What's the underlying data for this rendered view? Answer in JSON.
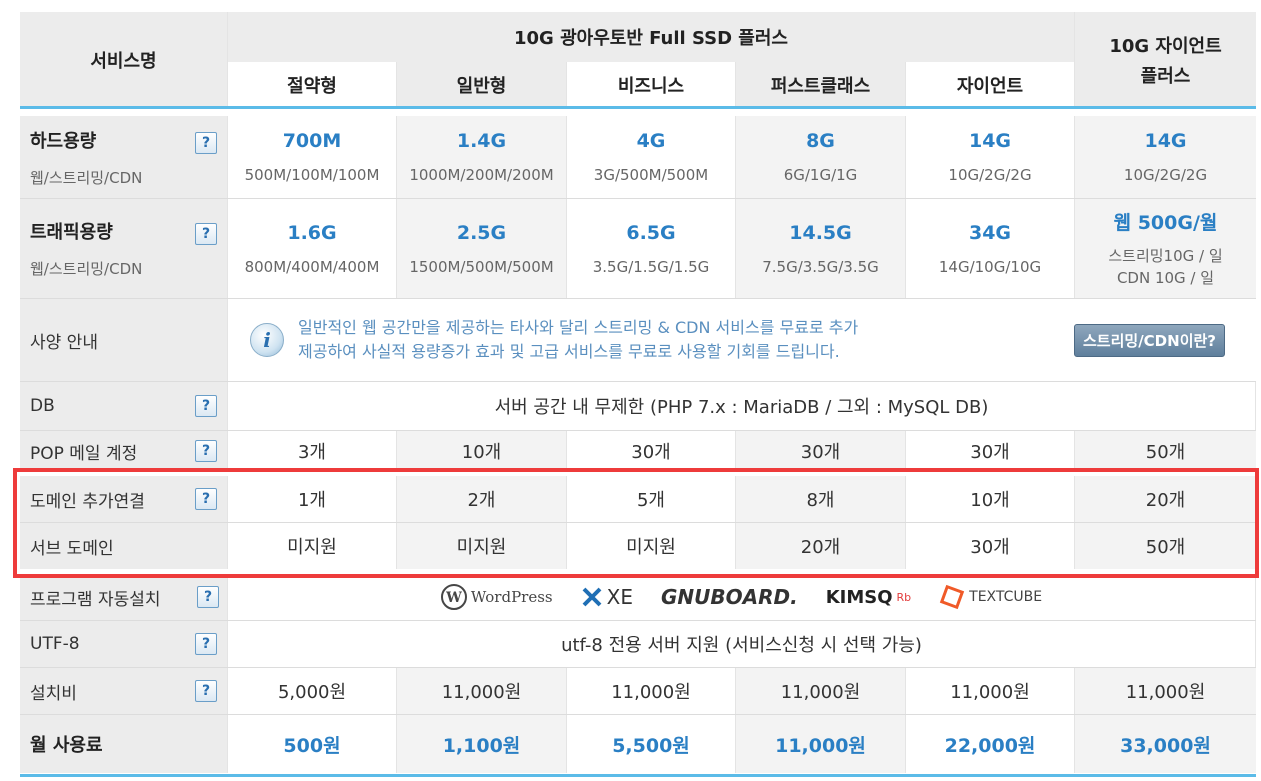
{
  "header": {
    "service_name": "서비스명",
    "group_title": "10G 광아우토반 Full SSD 플러스",
    "plans": [
      "절약형",
      "일반형",
      "비즈니스",
      "퍼스트클래스",
      "자이언트"
    ],
    "giant_plus_line1": "10G 자이언트",
    "giant_plus_line2": "플러스"
  },
  "help_mark": "?",
  "rows": {
    "disk": {
      "label": "하드용량",
      "sublabel": "웹/스트리밍/CDN",
      "values": [
        "700M",
        "1.4G",
        "4G",
        "8G",
        "14G",
        "14G"
      ],
      "subvalues": [
        "500M/100M/100M",
        "1000M/200M/200M",
        "3G/500M/500M",
        "6G/1G/1G",
        "10G/2G/2G",
        "10G/2G/2G"
      ]
    },
    "traffic": {
      "label": "트래픽용량",
      "sublabel": "웹/스트리밍/CDN",
      "values": [
        "1.6G",
        "2.5G",
        "6.5G",
        "14.5G",
        "34G",
        "웹 500G/월"
      ],
      "subvalues": [
        "800M/400M/400M",
        "1500M/500M/500M",
        "3.5G/1.5G/1.5G",
        "7.5G/3.5G/3.5G",
        "14G/10G/10G"
      ],
      "giant_sub_line1": "스트리밍10G / 일",
      "giant_sub_line2": "CDN 10G / 일"
    },
    "spec": {
      "label": "사양 안내",
      "info_line1": "일반적인 웹 공간만을 제공하는 타사와 달리 스트리밍 & CDN 서비스를 무료로 추가",
      "info_line2": "제공하여 사실적 용량증가 효과 및 고급 서비스를 무료로 사용할 기회를 드립니다.",
      "button_label": "스트리밍/CDN이란?"
    },
    "db": {
      "label": "DB",
      "value": "서버 공간 내 무제한 (PHP 7.x : MariaDB / 그외 : MySQL DB)"
    },
    "pop": {
      "label": "POP 메일 계정",
      "values": [
        "3개",
        "10개",
        "30개",
        "30개",
        "30개",
        "50개"
      ]
    },
    "domain_add": {
      "label": "도메인 추가연결",
      "values": [
        "1개",
        "2개",
        "5개",
        "8개",
        "10개",
        "20개"
      ]
    },
    "subdomain": {
      "label": "서브 도메인",
      "values": [
        "미지원",
        "미지원",
        "미지원",
        "20개",
        "30개",
        "50개"
      ]
    },
    "autoinstall": {
      "label": "프로그램 자동설치",
      "logos": [
        {
          "text": "WordPress",
          "icon": "wordpress-logo"
        },
        {
          "text": "XE",
          "icon": "xe-logo"
        },
        {
          "text": "GNUBOARD.",
          "icon": "gnuboard-logo"
        },
        {
          "text": "KIMSQ",
          "sup": "Rb",
          "icon": "kimsq-logo"
        },
        {
          "text": "TEXTCUBE",
          "icon": "textcube-logo"
        }
      ]
    },
    "utf8": {
      "label": "UTF-8",
      "value": "utf-8 전용 서버 지원 (서비스신청 시 선택 가능)"
    },
    "setup_fee": {
      "label": "설치비",
      "values": [
        "5,000원",
        "11,000원",
        "11,000원",
        "11,000원",
        "11,000원",
        "11,000원"
      ]
    },
    "monthly_fee": {
      "label": "월 사용료",
      "values": [
        "500원",
        "1,100원",
        "5,500원",
        "11,000원",
        "22,000원",
        "33,000원"
      ]
    }
  },
  "colors": {
    "accent_blue": "#2a7fc4",
    "highlight_red": "#ee3b3b",
    "header_underline": "#5bbbe8"
  }
}
